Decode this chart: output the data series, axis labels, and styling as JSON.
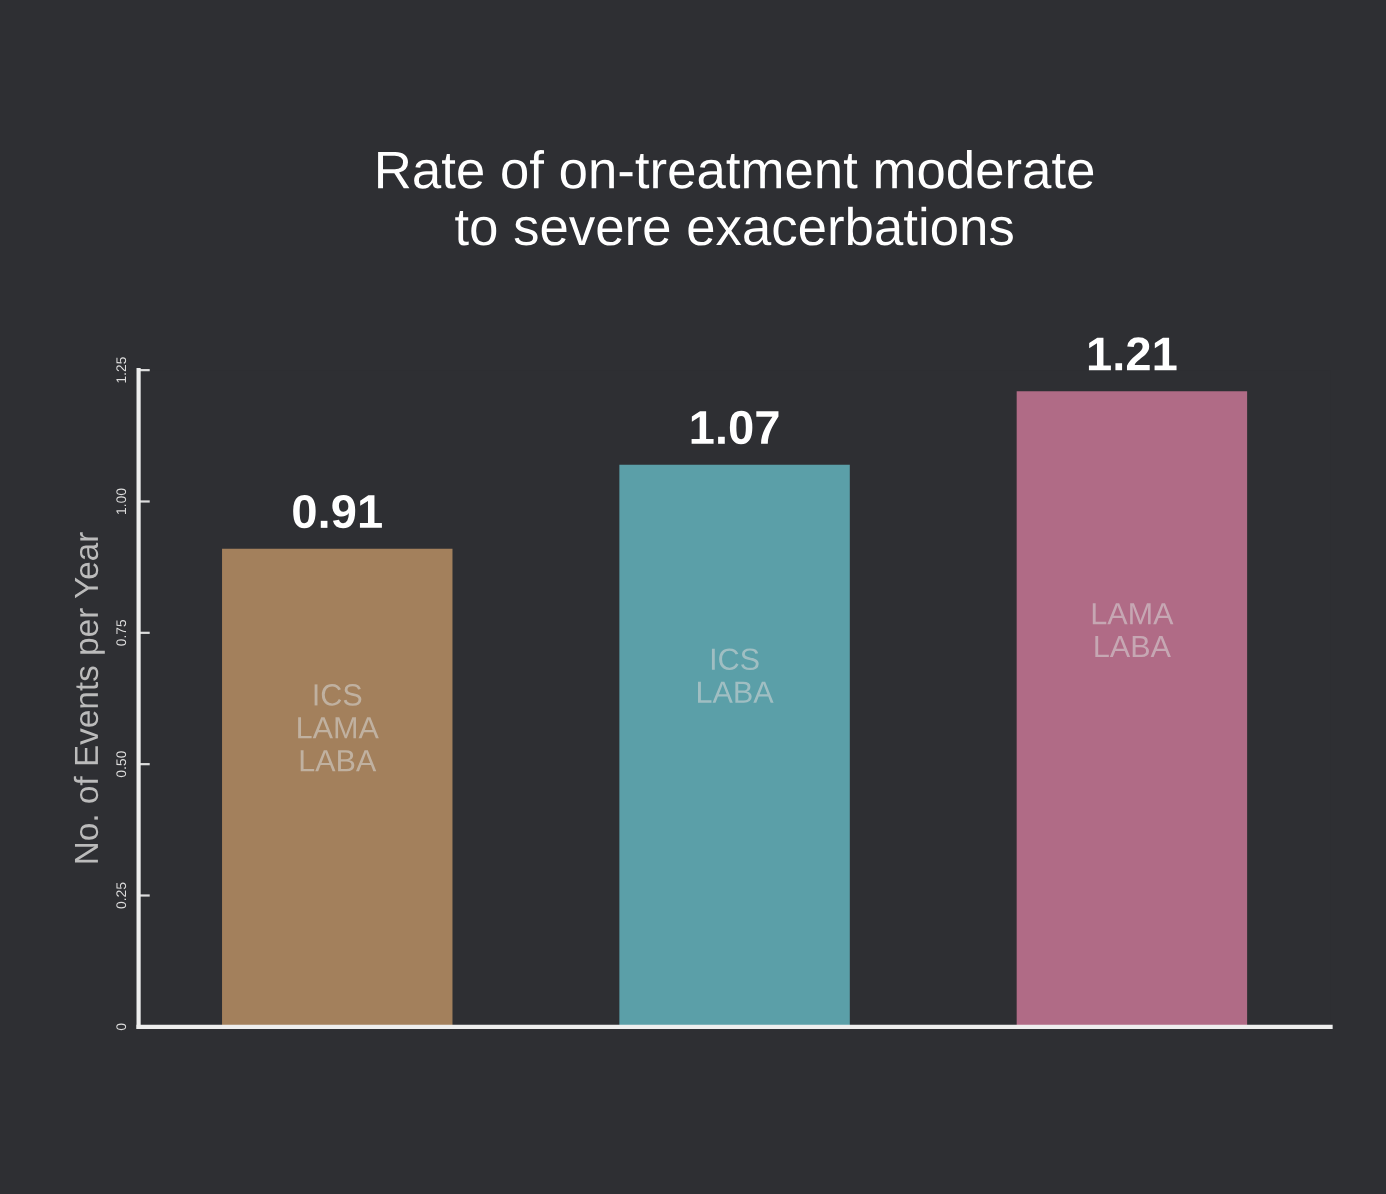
{
  "chart_data": {
    "type": "bar",
    "title": "Rate of on-treatment moderate\nto severe exacerbations",
    "ylabel": "No. of Events per Year",
    "categories": [
      "ICS\nLAMA\nLABA",
      "ICS\nLABA",
      "LAMA\nLABA"
    ],
    "values": [
      0.91,
      1.07,
      1.21
    ],
    "colors": [
      "#a3805c",
      "#5b9fa8",
      "#b06b86"
    ],
    "ylim": [
      0,
      1.25
    ],
    "yticks": [
      0,
      {
        "value": 0.25,
        "label": "0.25"
      },
      {
        "value": 0.5,
        "label": "0.50"
      },
      {
        "value": 0.75,
        "label": "0.75"
      },
      {
        "value": 1.0,
        "label": "1.00"
      },
      1.25
    ],
    "data_labels": true,
    "grid": false,
    "legend": false
  }
}
